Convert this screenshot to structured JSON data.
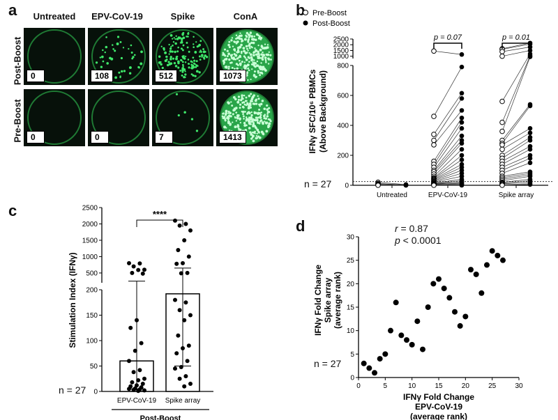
{
  "panel_a": {
    "letter": "a",
    "columns": [
      "Untreated",
      "EPV-CoV-19",
      "Spike",
      "ConA"
    ],
    "rows": [
      {
        "label": "Post-Boost",
        "counts": [
          "0",
          "108",
          "512",
          "1073"
        ],
        "density": [
          0,
          0.15,
          0.55,
          1.0
        ]
      },
      {
        "label": "Pre-Boost",
        "counts": [
          "0",
          "0",
          "7",
          "1413"
        ],
        "density": [
          0,
          0,
          0.02,
          1.0
        ]
      }
    ],
    "colors": {
      "well_bg": "#07110a",
      "spot": "#3fe86a",
      "rim": "#1f7a34"
    }
  },
  "panel_b": {
    "letter": "b",
    "n_label": "n = 27",
    "chart_data": {
      "type": "scatter",
      "ylabel_line1": "IFNγ SFC/10⁶ PBMCs",
      "ylabel_line2": "(Above Background)",
      "categories": [
        "Untreated",
        "EPV-CoV-19",
        "Spike array"
      ],
      "ylim_lower": [
        0,
        800
      ],
      "yticks_lower": [
        0,
        200,
        400,
        600,
        800
      ],
      "ylim_upper": [
        800,
        2500
      ],
      "yticks_upper": [
        1000,
        1500,
        2000,
        2500
      ],
      "legend": [
        "Pre-Boost",
        "Post-Boost"
      ],
      "legend_position": "top-left",
      "dotted_baseline": 25,
      "annotations": [
        {
          "category": "EPV-CoV-19",
          "text": "p = 0.07"
        },
        {
          "category": "Spike array",
          "text": "p = 0.01"
        }
      ],
      "series": [
        {
          "category": "Untreated",
          "pre": [
            20,
            12,
            8,
            5,
            2,
            0
          ],
          "post": [
            5,
            3,
            2,
            1,
            0,
            0
          ]
        },
        {
          "category": "EPV-CoV-19",
          "pre": [
            1450,
            460,
            340,
            300,
            270,
            160,
            140,
            120,
            100,
            90,
            75,
            60,
            50,
            45,
            40,
            35,
            30,
            25,
            20,
            15,
            12,
            10,
            8,
            5,
            3,
            2,
            0
          ],
          "post": [
            1150,
            790,
            615,
            580,
            500,
            450,
            420,
            380,
            330,
            300,
            280,
            240,
            200,
            170,
            140,
            120,
            100,
            80,
            60,
            40,
            30,
            20,
            15,
            10,
            5,
            2,
            0
          ]
        },
        {
          "category": "Spike array",
          "pre": [
            1650,
            1600,
            1400,
            1000,
            560,
            420,
            360,
            300,
            280,
            270,
            240,
            200,
            180,
            160,
            140,
            120,
            100,
            80,
            60,
            50,
            40,
            30,
            20,
            15,
            10,
            5,
            0
          ],
          "post": [
            2150,
            2050,
            1800,
            1500,
            1200,
            1050,
            950,
            540,
            530,
            380,
            350,
            320,
            300,
            260,
            240,
            200,
            180,
            150,
            90,
            80,
            70,
            60,
            40,
            30,
            20,
            10,
            5
          ]
        }
      ]
    }
  },
  "panel_c": {
    "letter": "c",
    "n_label": "n = 27",
    "group_label": "Post-Boost",
    "sig": "****",
    "chart_data": {
      "type": "bar",
      "ylabel": "Stimulation Index (IFNγ)",
      "categories": [
        "EPV-CoV-19",
        "Spike array"
      ],
      "values": [
        60,
        192
      ],
      "ylim_lower": [
        0,
        200
      ],
      "yticks_lower": [
        0,
        50,
        100,
        150,
        200
      ],
      "ylim_upper": [
        200,
        2500
      ],
      "yticks_upper": [
        500,
        1000,
        1500,
        2000,
        2500
      ],
      "error_low": [
        5,
        50
      ],
      "error_high": [
        250,
        650
      ],
      "points": [
        [
          800,
          790,
          700,
          600,
          590,
          500,
          480,
          140,
          125,
          95,
          80,
          60,
          42,
          38,
          25,
          22,
          18,
          15,
          12,
          10,
          8,
          6,
          5,
          4,
          3,
          2,
          1
        ],
        [
          2100,
          2000,
          1950,
          1800,
          1500,
          1200,
          1000,
          800,
          780,
          500,
          490,
          180,
          175,
          160,
          150,
          140,
          110,
          90,
          85,
          75,
          60,
          48,
          45,
          30,
          25,
          15,
          10
        ]
      ]
    }
  },
  "panel_d": {
    "letter": "d",
    "n_label": "n = 27",
    "r_label": "r",
    "r_value": " = 0.87",
    "p_label": "p",
    "p_value": " < 0.0001",
    "chart_data": {
      "type": "scatter",
      "xlabel_lines": [
        "IFNγ Fold Change",
        "EPV-CoV-19",
        "(average rank)"
      ],
      "ylabel_lines": [
        "IFNγ Fold Change",
        "Spike array",
        "(average rank)"
      ],
      "xlim": [
        0,
        30
      ],
      "ylim": [
        0,
        30
      ],
      "xticks": [
        0,
        5,
        10,
        15,
        20,
        25,
        30
      ],
      "yticks": [
        0,
        5,
        10,
        15,
        20,
        25,
        30
      ],
      "points": [
        [
          1,
          3
        ],
        [
          2,
          2
        ],
        [
          3,
          1
        ],
        [
          4,
          4
        ],
        [
          5,
          5
        ],
        [
          6,
          10
        ],
        [
          7,
          16
        ],
        [
          8,
          9
        ],
        [
          9,
          8
        ],
        [
          10,
          7
        ],
        [
          11,
          12
        ],
        [
          12,
          6
        ],
        [
          13,
          15
        ],
        [
          14,
          20
        ],
        [
          15,
          21
        ],
        [
          16,
          19
        ],
        [
          17,
          17
        ],
        [
          18,
          14
        ],
        [
          19,
          11
        ],
        [
          20,
          13
        ],
        [
          21,
          23
        ],
        [
          22,
          22
        ],
        [
          23,
          18
        ],
        [
          24,
          24
        ],
        [
          25,
          27
        ],
        [
          26,
          26
        ],
        [
          27,
          25
        ]
      ]
    }
  }
}
